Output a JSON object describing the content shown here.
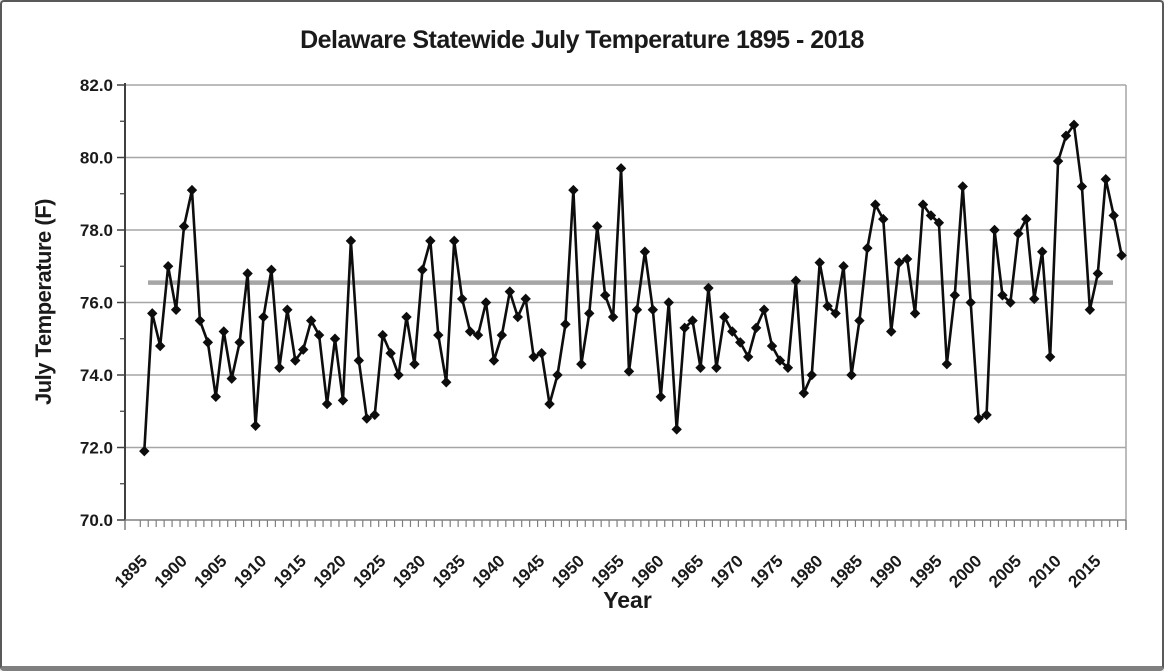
{
  "figure": {
    "title": "Delaware Statewide July Temperature 1895 - 2018",
    "x_axis_label": "Year",
    "y_axis_label": "July Temperature (F)"
  },
  "chart_data": {
    "type": "line",
    "title": "Delaware Statewide July Temperature 1895 - 2018",
    "xlabel": "Year",
    "ylabel": "July Temperature (F)",
    "ylim": [
      70.0,
      82.0
    ],
    "y_ticks": [
      "70.0",
      "72.0",
      "74.0",
      "76.0",
      "78.0",
      "80.0",
      "82.0"
    ],
    "x_tick_labels": [
      "1895",
      "1900",
      "1905",
      "1910",
      "1915",
      "1920",
      "1925",
      "1930",
      "1935",
      "1940",
      "1945",
      "1950",
      "1955",
      "1960",
      "1965",
      "1970",
      "1975",
      "1980",
      "1985",
      "1990",
      "1995",
      "2000",
      "2005",
      "2010",
      "2015"
    ],
    "grid": "horizontal-only",
    "legend": "none",
    "marker": "diamond",
    "series_color": "#0d0d0d",
    "gridline_color": "#a6a6a6",
    "reference_line": {
      "value": 76.55,
      "color": "#a6a6a6"
    },
    "x": [
      1895,
      1896,
      1897,
      1898,
      1899,
      1900,
      1901,
      1902,
      1903,
      1904,
      1905,
      1906,
      1907,
      1908,
      1909,
      1910,
      1911,
      1912,
      1913,
      1914,
      1915,
      1916,
      1917,
      1918,
      1919,
      1920,
      1921,
      1922,
      1923,
      1924,
      1925,
      1926,
      1927,
      1928,
      1929,
      1930,
      1931,
      1932,
      1933,
      1934,
      1935,
      1936,
      1937,
      1938,
      1939,
      1940,
      1941,
      1942,
      1943,
      1944,
      1945,
      1946,
      1947,
      1948,
      1949,
      1950,
      1951,
      1952,
      1953,
      1954,
      1955,
      1956,
      1957,
      1958,
      1959,
      1960,
      1961,
      1962,
      1963,
      1964,
      1965,
      1966,
      1967,
      1968,
      1969,
      1970,
      1971,
      1972,
      1973,
      1974,
      1975,
      1976,
      1977,
      1978,
      1979,
      1980,
      1981,
      1982,
      1983,
      1984,
      1985,
      1986,
      1987,
      1988,
      1989,
      1990,
      1991,
      1992,
      1993,
      1994,
      1995,
      1996,
      1997,
      1998,
      1999,
      2000,
      2001,
      2002,
      2003,
      2004,
      2005,
      2006,
      2007,
      2008,
      2009,
      2010,
      2011,
      2012,
      2013,
      2014,
      2015,
      2016,
      2017,
      2018
    ],
    "values": [
      71.9,
      75.7,
      74.8,
      77.0,
      75.8,
      78.1,
      79.1,
      75.5,
      74.9,
      73.4,
      75.2,
      73.9,
      74.9,
      76.8,
      72.6,
      75.6,
      76.9,
      74.2,
      75.8,
      74.4,
      74.7,
      75.5,
      75.1,
      73.2,
      75.0,
      73.3,
      77.7,
      74.4,
      72.8,
      72.9,
      75.1,
      74.6,
      74.0,
      75.6,
      74.3,
      76.9,
      77.7,
      75.1,
      73.8,
      77.7,
      76.1,
      75.2,
      75.1,
      76.0,
      74.4,
      75.1,
      76.3,
      75.6,
      76.1,
      74.5,
      74.6,
      73.2,
      74.0,
      75.4,
      79.1,
      74.3,
      75.7,
      78.1,
      76.2,
      75.6,
      79.7,
      74.1,
      75.8,
      77.4,
      75.8,
      73.4,
      76.0,
      72.5,
      75.3,
      75.5,
      74.2,
      76.4,
      74.2,
      75.6,
      75.2,
      74.9,
      74.5,
      75.3,
      75.8,
      74.8,
      74.4,
      74.2,
      76.6,
      73.5,
      74.0,
      77.1,
      75.9,
      75.7,
      77.0,
      74.0,
      75.5,
      77.5,
      78.7,
      78.3,
      75.2,
      77.1,
      77.2,
      75.7,
      78.7,
      78.4,
      78.2,
      74.3,
      76.2,
      79.2,
      76.0,
      72.8,
      72.9,
      78.0,
      76.2,
      76.0,
      77.9,
      78.3,
      76.1,
      77.4,
      74.5,
      79.9,
      80.6,
      80.9,
      79.2,
      75.8,
      76.8,
      79.4,
      78.4,
      77.3
    ]
  }
}
